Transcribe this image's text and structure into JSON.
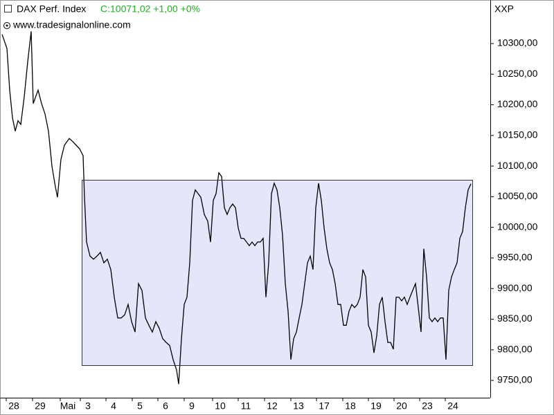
{
  "chart_data": {
    "type": "line",
    "title": "DAX Perf. Index",
    "subtitle": "C:10071,02 +1,00 +0%",
    "source": "www.tradesignalonline.com",
    "y_axis_label": "XXP",
    "color": "#000000",
    "x": [
      3,
      10,
      14,
      18,
      22,
      26,
      30,
      35,
      40,
      45,
      48,
      55,
      60,
      65,
      70,
      75,
      80,
      83,
      88,
      93,
      100,
      105,
      110,
      115,
      120,
      122,
      125,
      130,
      135,
      140,
      145,
      150,
      155,
      160,
      165,
      170,
      175,
      180,
      185,
      190,
      195,
      200,
      205,
      210,
      215,
      220,
      225,
      230,
      235,
      240,
      245,
      250,
      255,
      258,
      262,
      266,
      270,
      274,
      278,
      282,
      286,
      290,
      295,
      300,
      304,
      308,
      312,
      316,
      320,
      324,
      328,
      332,
      336,
      340,
      344,
      348,
      352,
      356,
      360,
      364,
      368,
      372,
      376,
      380,
      384,
      388,
      392,
      396,
      400,
      404,
      408,
      412,
      416,
      420,
      424,
      428,
      432,
      436,
      440,
      444,
      448,
      452,
      456,
      460,
      464,
      468,
      472,
      476,
      480,
      484,
      488,
      492,
      496,
      500,
      504,
      508,
      512,
      516,
      520,
      524,
      528,
      532,
      536,
      540,
      544,
      548,
      552,
      556,
      560,
      564,
      568,
      572,
      576,
      580,
      584,
      588,
      592,
      596,
      600,
      604,
      608,
      612,
      616,
      620,
      624,
      628,
      632,
      636,
      640,
      644,
      648,
      652,
      656,
      660,
      664,
      668,
      672,
      676,
      680
    ],
    "values": [
      10315,
      10292,
      10224,
      10179,
      10157,
      10174,
      10168,
      10213,
      10270,
      10320,
      10202,
      10224,
      10202,
      10185,
      10157,
      10100,
      10066,
      10049,
      10111,
      10134,
      10145,
      10140,
      10134,
      10128,
      10117,
      10049,
      9976,
      9953,
      9948,
      9953,
      9959,
      9942,
      9948,
      9931,
      9886,
      9852,
      9852,
      9857,
      9874,
      9846,
      9829,
      9908,
      9897,
      9852,
      9840,
      9829,
      9846,
      9835,
      9818,
      9812,
      9807,
      9784,
      9767,
      9744,
      9818,
      9874,
      9886,
      9942,
      10044,
      10061,
      10055,
      10049,
      10021,
      10010,
      9976,
      10044,
      10055,
      10089,
      10083,
      10032,
      10021,
      10032,
      10038,
      10032,
      9999,
      9982,
      9982,
      9976,
      9970,
      9976,
      9970,
      9976,
      9976,
      9982,
      9886,
      9942,
      10055,
      10072,
      10061,
      10032,
      9987,
      9908,
      9863,
      9784,
      9818,
      9829,
      9852,
      9874,
      9908,
      9942,
      9953,
      9931,
      10032,
      10072,
      10044,
      9999,
      9965,
      9942,
      9931,
      9908,
      9874,
      9874,
      9840,
      9840,
      9863,
      9874,
      9869,
      9874,
      9886,
      9931,
      9919,
      9840,
      9829,
      9795,
      9823,
      9874,
      9886,
      9846,
      9812,
      9812,
      9801,
      9886,
      9886,
      9880,
      9886,
      9874,
      9886,
      9897,
      9908,
      9869,
      9829,
      9965,
      9919,
      9852,
      9846,
      9852,
      9846,
      9852,
      9852,
      9784,
      9897,
      9919,
      9931,
      9942,
      9982,
      9993,
      10032,
      10061,
      10071
    ],
    "xlim": [
      0,
      708
    ],
    "xticks": [
      {
        "value": 20,
        "label": "28"
      },
      {
        "value": 58,
        "label": "29"
      },
      {
        "value": 98,
        "label": "Mai"
      },
      {
        "value": 127,
        "label": "3"
      },
      {
        "value": 164,
        "label": "4"
      },
      {
        "value": 202,
        "label": "5"
      },
      {
        "value": 239,
        "label": "6"
      },
      {
        "value": 277,
        "label": "9"
      },
      {
        "value": 318,
        "label": "10"
      },
      {
        "value": 355,
        "label": "11"
      },
      {
        "value": 393,
        "label": "12"
      },
      {
        "value": 431,
        "label": "13"
      },
      {
        "value": 468,
        "label": "17"
      },
      {
        "value": 506,
        "label": "18"
      },
      {
        "value": 543,
        "label": "19"
      },
      {
        "value": 580,
        "label": "20"
      },
      {
        "value": 617,
        "label": "23"
      },
      {
        "value": 654,
        "label": "24"
      }
    ],
    "ylim": [
      9721.8,
      10371.1
    ],
    "yticks": [
      {
        "value": 9750,
        "label": "9750,00"
      },
      {
        "value": 9800,
        "label": "9800,00"
      },
      {
        "value": 9850,
        "label": "9850,00"
      },
      {
        "value": 9900,
        "label": "9900,00"
      },
      {
        "value": 9950,
        "label": "9950,00"
      },
      {
        "value": 10000,
        "label": "10000,00"
      },
      {
        "value": 10050,
        "label": "10050,00"
      },
      {
        "value": 10100,
        "label": "10100,00"
      },
      {
        "value": 10150,
        "label": "10150,00"
      },
      {
        "value": 10200,
        "label": "10200,00"
      },
      {
        "value": 10250,
        "label": "10250,00"
      },
      {
        "value": 10300,
        "label": "10300,00"
      }
    ]
  }
}
